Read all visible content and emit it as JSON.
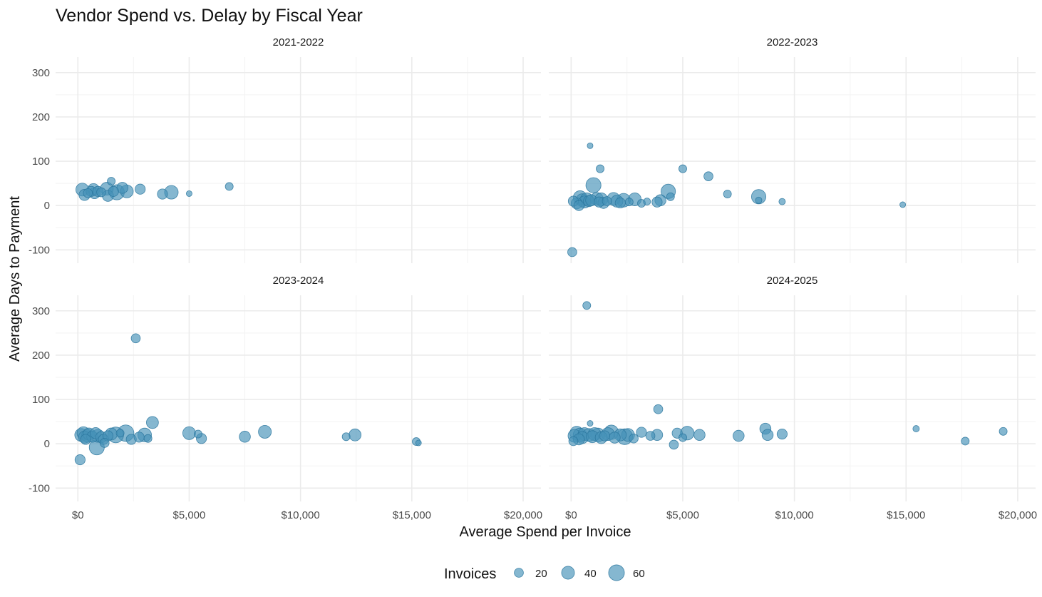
{
  "chart_data": {
    "type": "scatter",
    "title": "Vendor Spend vs. Delay by Fiscal Year",
    "xlabel": "Average Spend per Invoice",
    "ylabel": "Average Days to Payment",
    "xlim": [
      -1000,
      20800
    ],
    "ylim": [
      -130,
      335
    ],
    "x_ticks": [
      0,
      5000,
      10000,
      15000,
      20000
    ],
    "x_tick_labels": [
      "$0",
      "$5,000",
      "$10,000",
      "$15,000",
      "$20,000"
    ],
    "y_ticks": [
      -100,
      0,
      100,
      200,
      300
    ],
    "y_tick_labels": [
      "-100",
      "0",
      "100",
      "200",
      "300"
    ],
    "grid": true,
    "legend": {
      "title": "Invoices",
      "placement": "bottom",
      "entries": [
        {
          "label": "20",
          "value": 20
        },
        {
          "label": "40",
          "value": 40
        },
        {
          "label": "60",
          "value": 60
        }
      ]
    },
    "point_color": "#4692b7",
    "facets": [
      {
        "label": "2021-2022",
        "points": [
          {
            "x": 200,
            "y": 36,
            "size": 40
          },
          {
            "x": 300,
            "y": 24,
            "size": 30
          },
          {
            "x": 450,
            "y": 28,
            "size": 20
          },
          {
            "x": 600,
            "y": 32,
            "size": 25
          },
          {
            "x": 700,
            "y": 36,
            "size": 35
          },
          {
            "x": 750,
            "y": 28,
            "size": 30
          },
          {
            "x": 900,
            "y": 32,
            "size": 25
          },
          {
            "x": 1050,
            "y": 30,
            "size": 20
          },
          {
            "x": 1300,
            "y": 38,
            "size": 40
          },
          {
            "x": 1350,
            "y": 22,
            "size": 30
          },
          {
            "x": 1500,
            "y": 55,
            "size": 15
          },
          {
            "x": 1600,
            "y": 32,
            "size": 25
          },
          {
            "x": 1750,
            "y": 30,
            "size": 55
          },
          {
            "x": 2000,
            "y": 40,
            "size": 30
          },
          {
            "x": 2200,
            "y": 32,
            "size": 40
          },
          {
            "x": 2800,
            "y": 37,
            "size": 25
          },
          {
            "x": 3800,
            "y": 26,
            "size": 25
          },
          {
            "x": 4200,
            "y": 30,
            "size": 45
          },
          {
            "x": 5000,
            "y": 27,
            "size": 8
          },
          {
            "x": 6800,
            "y": 43,
            "size": 15
          }
        ]
      },
      {
        "label": "2022-2023",
        "points": [
          {
            "x": 50,
            "y": -105,
            "size": 20
          },
          {
            "x": 100,
            "y": 10,
            "size": 25
          },
          {
            "x": 250,
            "y": 5,
            "size": 30
          },
          {
            "x": 350,
            "y": 0,
            "size": 25
          },
          {
            "x": 400,
            "y": 18,
            "size": 45
          },
          {
            "x": 500,
            "y": 12,
            "size": 40
          },
          {
            "x": 600,
            "y": 8,
            "size": 35
          },
          {
            "x": 700,
            "y": 14,
            "size": 40
          },
          {
            "x": 800,
            "y": 10,
            "size": 30
          },
          {
            "x": 850,
            "y": 135,
            "size": 8
          },
          {
            "x": 900,
            "y": 12,
            "size": 30
          },
          {
            "x": 1000,
            "y": 46,
            "size": 55
          },
          {
            "x": 1150,
            "y": 15,
            "size": 40
          },
          {
            "x": 1250,
            "y": 8,
            "size": 25
          },
          {
            "x": 1300,
            "y": 83,
            "size": 15
          },
          {
            "x": 1350,
            "y": 14,
            "size": 40
          },
          {
            "x": 1450,
            "y": 6,
            "size": 30
          },
          {
            "x": 1600,
            "y": 10,
            "size": 20
          },
          {
            "x": 1900,
            "y": 15,
            "size": 40
          },
          {
            "x": 2050,
            "y": 10,
            "size": 35
          },
          {
            "x": 2200,
            "y": 6,
            "size": 25
          },
          {
            "x": 2350,
            "y": 12,
            "size": 45
          },
          {
            "x": 2600,
            "y": 8,
            "size": 15
          },
          {
            "x": 2850,
            "y": 14,
            "size": 40
          },
          {
            "x": 3150,
            "y": 5,
            "size": 15
          },
          {
            "x": 3400,
            "y": 9,
            "size": 12
          },
          {
            "x": 3850,
            "y": 8,
            "size": 25
          },
          {
            "x": 4000,
            "y": 12,
            "size": 30
          },
          {
            "x": 4350,
            "y": 32,
            "size": 50
          },
          {
            "x": 4450,
            "y": 20,
            "size": 15
          },
          {
            "x": 5000,
            "y": 83,
            "size": 15
          },
          {
            "x": 6150,
            "y": 66,
            "size": 20
          },
          {
            "x": 7000,
            "y": 26,
            "size": 15
          },
          {
            "x": 8400,
            "y": 20,
            "size": 50
          },
          {
            "x": 8400,
            "y": 12,
            "size": 10
          },
          {
            "x": 9450,
            "y": 9,
            "size": 10
          },
          {
            "x": 14850,
            "y": 2,
            "size": 8
          }
        ]
      },
      {
        "label": "2023-2024",
        "points": [
          {
            "x": 100,
            "y": -36,
            "size": 25
          },
          {
            "x": 150,
            "y": 20,
            "size": 40
          },
          {
            "x": 250,
            "y": 24,
            "size": 40
          },
          {
            "x": 300,
            "y": 15,
            "size": 35
          },
          {
            "x": 350,
            "y": 10,
            "size": 25
          },
          {
            "x": 450,
            "y": 18,
            "size": 40
          },
          {
            "x": 500,
            "y": 22,
            "size": 35
          },
          {
            "x": 650,
            "y": 16,
            "size": 30
          },
          {
            "x": 800,
            "y": 24,
            "size": 30
          },
          {
            "x": 850,
            "y": -8,
            "size": 55
          },
          {
            "x": 900,
            "y": 18,
            "size": 40
          },
          {
            "x": 1050,
            "y": 15,
            "size": 30
          },
          {
            "x": 1150,
            "y": 10,
            "size": 25
          },
          {
            "x": 1200,
            "y": 2,
            "size": 20
          },
          {
            "x": 1350,
            "y": 18,
            "size": 25
          },
          {
            "x": 1500,
            "y": 22,
            "size": 35
          },
          {
            "x": 1700,
            "y": 20,
            "size": 60
          },
          {
            "x": 1900,
            "y": 24,
            "size": 15
          },
          {
            "x": 2150,
            "y": 24,
            "size": 65
          },
          {
            "x": 2400,
            "y": 10,
            "size": 25
          },
          {
            "x": 2600,
            "y": 238,
            "size": 20
          },
          {
            "x": 2750,
            "y": 15,
            "size": 25
          },
          {
            "x": 3000,
            "y": 20,
            "size": 45
          },
          {
            "x": 3150,
            "y": 12,
            "size": 15
          },
          {
            "x": 3350,
            "y": 48,
            "size": 35
          },
          {
            "x": 5000,
            "y": 24,
            "size": 40
          },
          {
            "x": 5400,
            "y": 22,
            "size": 15
          },
          {
            "x": 5550,
            "y": 12,
            "size": 25
          },
          {
            "x": 7500,
            "y": 16,
            "size": 30
          },
          {
            "x": 8400,
            "y": 27,
            "size": 40
          },
          {
            "x": 12050,
            "y": 16,
            "size": 15
          },
          {
            "x": 12450,
            "y": 20,
            "size": 35
          },
          {
            "x": 15200,
            "y": 5,
            "size": 15
          },
          {
            "x": 15300,
            "y": 2,
            "size": 8
          }
        ]
      },
      {
        "label": "2024-2025",
        "points": [
          {
            "x": 100,
            "y": 6,
            "size": 20
          },
          {
            "x": 150,
            "y": 18,
            "size": 40
          },
          {
            "x": 250,
            "y": 24,
            "size": 45
          },
          {
            "x": 350,
            "y": 10,
            "size": 30
          },
          {
            "x": 400,
            "y": 20,
            "size": 45
          },
          {
            "x": 500,
            "y": 14,
            "size": 35
          },
          {
            "x": 600,
            "y": 22,
            "size": 40
          },
          {
            "x": 700,
            "y": 312,
            "size": 15
          },
          {
            "x": 800,
            "y": 20,
            "size": 40
          },
          {
            "x": 850,
            "y": 46,
            "size": 8
          },
          {
            "x": 950,
            "y": 16,
            "size": 35
          },
          {
            "x": 1050,
            "y": 22,
            "size": 40
          },
          {
            "x": 1200,
            "y": 20,
            "size": 45
          },
          {
            "x": 1350,
            "y": 14,
            "size": 35
          },
          {
            "x": 1500,
            "y": 18,
            "size": 25
          },
          {
            "x": 1650,
            "y": 22,
            "size": 40
          },
          {
            "x": 1800,
            "y": 26,
            "size": 50
          },
          {
            "x": 1950,
            "y": 14,
            "size": 30
          },
          {
            "x": 2200,
            "y": 20,
            "size": 35
          },
          {
            "x": 2400,
            "y": 16,
            "size": 60
          },
          {
            "x": 2550,
            "y": 20,
            "size": 40
          },
          {
            "x": 2800,
            "y": 12,
            "size": 20
          },
          {
            "x": 3150,
            "y": 26,
            "size": 25
          },
          {
            "x": 3550,
            "y": 18,
            "size": 20
          },
          {
            "x": 3850,
            "y": 20,
            "size": 30
          },
          {
            "x": 3900,
            "y": 78,
            "size": 20
          },
          {
            "x": 4600,
            "y": -2,
            "size": 20
          },
          {
            "x": 4750,
            "y": 24,
            "size": 25
          },
          {
            "x": 5000,
            "y": 14,
            "size": 15
          },
          {
            "x": 5200,
            "y": 24,
            "size": 45
          },
          {
            "x": 5750,
            "y": 20,
            "size": 30
          },
          {
            "x": 7500,
            "y": 18,
            "size": 30
          },
          {
            "x": 8700,
            "y": 34,
            "size": 30
          },
          {
            "x": 8800,
            "y": 20,
            "size": 30
          },
          {
            "x": 9450,
            "y": 22,
            "size": 25
          },
          {
            "x": 15450,
            "y": 34,
            "size": 10
          },
          {
            "x": 17650,
            "y": 6,
            "size": 15
          },
          {
            "x": 19350,
            "y": 28,
            "size": 15
          }
        ]
      }
    ]
  }
}
